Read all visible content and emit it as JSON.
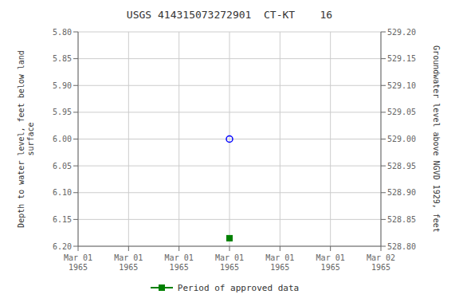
{
  "chart_data": {
    "type": "scatter",
    "title": "USGS 414315073272901  CT-KT    16",
    "y_label": "Depth to water level, feet below land\nsurface",
    "y2_label": "Groundwater level above NGVD 1929, feet",
    "categories": [
      "Mar 01\n1965",
      "Mar 01\n1965",
      "Mar 01\n1965",
      "Mar 01\n1965",
      "Mar 01\n1965",
      "Mar 01\n1965",
      "Mar 02\n1965"
    ],
    "series": [
      {
        "color": "blue",
        "marker": "circle",
        "values": [
          null,
          null,
          null,
          6.0,
          null,
          null,
          null
        ]
      },
      {
        "name": "Period of approved data",
        "color": "green",
        "marker": "square",
        "values": [
          null,
          null,
          null,
          6.185,
          null,
          null,
          null
        ]
      }
    ],
    "ylim": [
      6.2,
      5.8
    ],
    "yticks": [
      {
        "value": 5.8,
        "label": "5.80"
      },
      5.85,
      {
        "value": 5.9,
        "label": "5.90"
      },
      5.95,
      {
        "value": 6,
        "label": "6.00"
      },
      6.05,
      {
        "value": 6.1,
        "label": "6.10"
      },
      6.15,
      {
        "value": 6.2,
        "label": "6.20"
      }
    ],
    "y2lim": [
      528.8,
      529.2
    ],
    "y2ticks": [
      {
        "value": 529.2,
        "label": "529.20"
      },
      529.15,
      {
        "value": 529.1,
        "label": "529.10"
      },
      529.05,
      {
        "value": 529,
        "label": "529.00"
      },
      528.95,
      {
        "value": 528.9,
        "label": "528.90"
      },
      528.85,
      {
        "value": 528.8,
        "label": "528.80"
      }
    ],
    "grid": true
  }
}
